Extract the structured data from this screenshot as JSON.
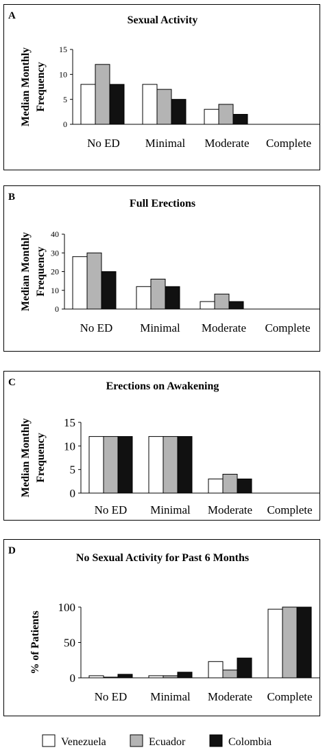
{
  "legend": {
    "items": [
      {
        "label": "Venezuela",
        "color": "#ffffff"
      },
      {
        "label": "Ecuador",
        "color": "#b4b4b4"
      },
      {
        "label": "Colombia",
        "color": "#111111"
      }
    ]
  },
  "chart_data": [
    {
      "panel_label": "A",
      "type": "bar",
      "title": "Sexual Activity",
      "ylabel": "Median Monthly Frequency",
      "ylabel_lines": [
        "Median Monthly",
        "Frequency"
      ],
      "categories": [
        "No ED",
        "Minimal",
        "Moderate",
        "Complete"
      ],
      "ylim": [
        0,
        15
      ],
      "yticks": [
        0,
        5,
        10,
        15
      ],
      "series": [
        {
          "name": "Venezuela",
          "values": [
            8,
            8,
            3,
            0
          ]
        },
        {
          "name": "Ecuador",
          "values": [
            12,
            7,
            4,
            0
          ]
        },
        {
          "name": "Colombia",
          "values": [
            8,
            5,
            2,
            0
          ]
        }
      ],
      "grid": false
    },
    {
      "panel_label": "B",
      "type": "bar",
      "title": "Full Erections",
      "ylabel": "Median Monthly Frequency",
      "ylabel_lines": [
        "Median Monthly",
        "Frequency"
      ],
      "categories": [
        "No ED",
        "Minimal",
        "Moderate",
        "Complete"
      ],
      "ylim": [
        0,
        40
      ],
      "yticks": [
        0,
        10,
        20,
        30,
        40
      ],
      "series": [
        {
          "name": "Venezuela",
          "values": [
            28,
            12,
            4,
            0
          ]
        },
        {
          "name": "Ecuador",
          "values": [
            30,
            16,
            8,
            0
          ]
        },
        {
          "name": "Colombia",
          "values": [
            20,
            12,
            4,
            0
          ]
        }
      ],
      "grid": false
    },
    {
      "panel_label": "C",
      "type": "bar",
      "title": "Erections on Awakening",
      "ylabel": "Median Monthly Frequency",
      "ylabel_lines": [
        "Median Monthly",
        "Frequency"
      ],
      "categories": [
        "No ED",
        "Minimal",
        "Moderate",
        "Complete"
      ],
      "ylim": [
        0,
        15
      ],
      "yticks": [
        0,
        5,
        10,
        15
      ],
      "series": [
        {
          "name": "Venezuela",
          "values": [
            12,
            12,
            3,
            0
          ]
        },
        {
          "name": "Ecuador",
          "values": [
            12,
            12,
            4,
            0
          ]
        },
        {
          "name": "Colombia",
          "values": [
            12,
            12,
            3,
            0
          ]
        }
      ],
      "grid": false
    },
    {
      "panel_label": "D",
      "type": "bar",
      "title": "No Sexual Activity for Past 6 Months",
      "ylabel": "% of Patients",
      "ylabel_lines": [
        "% of Patients"
      ],
      "categories": [
        "No ED",
        "Minimal",
        "Moderate",
        "Complete"
      ],
      "ylim": [
        0,
        100
      ],
      "yticks": [
        0,
        50,
        100
      ],
      "series": [
        {
          "name": "Venezuela",
          "values": [
            3,
            3,
            23,
            97
          ]
        },
        {
          "name": "Ecuador",
          "values": [
            1,
            3,
            11,
            100
          ]
        },
        {
          "name": "Colombia",
          "values": [
            5,
            8,
            28,
            100
          ]
        }
      ],
      "grid": false
    }
  ]
}
